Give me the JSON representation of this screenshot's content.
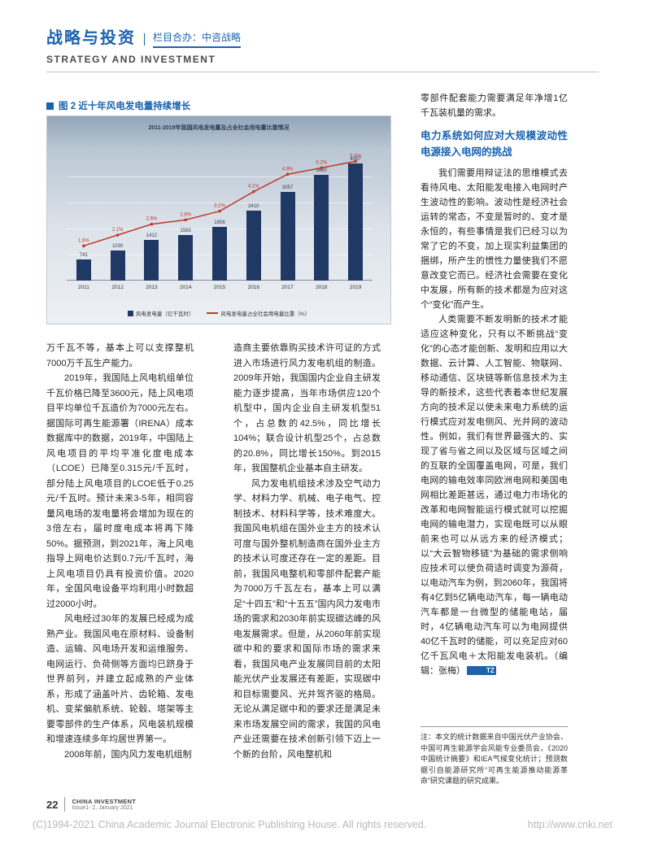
{
  "accent_color": "#1b63ae",
  "header": {
    "title_cn": "战略与投资",
    "subtitle_cn": "栏目合办：中咨战略",
    "title_en": "STRATEGY AND INVESTMENT"
  },
  "figure": {
    "caption": "图 2  近十年风电发电量持续增长"
  },
  "chart_data": {
    "type": "bar",
    "title": "2011-2019年我国风电发电量及占全社会用电量比重情况",
    "categories": [
      "2011",
      "2012",
      "2013",
      "2014",
      "2015",
      "2016",
      "2017",
      "2018",
      "2019"
    ],
    "series": [
      {
        "name": "风电发电量（亿千瓦时）",
        "type": "bar",
        "values": [
          741,
          1030,
          1412,
          1563,
          1856,
          2410,
          3057,
          3660,
          4057
        ]
      },
      {
        "name": "风电发电量占全社会用电量比重（%）",
        "type": "line",
        "values": [
          1.6,
          2.1,
          2.6,
          2.8,
          3.2,
          4.1,
          4.9,
          5.2,
          5.5
        ]
      }
    ],
    "ylim": [
      0,
      4500
    ],
    "y2max": 6,
    "grid": true,
    "legend_position": "bottom",
    "bar_color": "#1f3864",
    "line_color": "#c0392b"
  },
  "columns": {
    "col1": {
      "paras": [
        "万千瓦不等，基本上可以支撑整机7000万千瓦生产能力。",
        "2019年，我国陆上风电机组单位千瓦价格已降至3600元，陆上风电项目平均单位千瓦造价为7000元左右。据国际可再生能源署（IRENA）成本数据库中的数据，2019年，中国陆上风电项目的平均平准化度电成本（LCOE）已降至0.315元/千瓦时，部分陆上风电项目的LCOE低于0.25元/千瓦时。预计未来3-5年，相同容量风电场的发电量将会增加为现在的3倍左右，届时度电成本将再下降50%。据预测，到2021年，海上风电指导上网电价达到0.7元/千瓦时，海上风电项目仍具有投资价值。2020年，全国风电设备平均利用小时数超过2000小时。",
        "风电经过30年的发展已经成为成熟产业。我国风电在原材料、设备制造、运输、风电场开发和运维服务、电网运行、负荷侧等方面均已跻身于世界前列，并建立起成熟的产业体系，形成了涵盖叶片、齿轮箱、发电机、变桨偏航系统、轮毂、塔架等主要零部件的生产体系，风电装机规模和增速连续多年均居世界第一。",
        "2008年前，国内风力发电机组制"
      ]
    },
    "col2": {
      "paras": [
        "造商主要依靠购买技术许可证的方式进入市场进行风力发电机组的制造。2009年开始，我国国内企业自主研发能力逐步提高，当年市场供应120个机型中，国内企业自主研发机型51个，占总数的42.5%，同比增长104%；联合设计机型25个，占总数的20.8%，同比增长150%。到2015年，我国整机企业基本自主研发。",
        "风力发电机组技术涉及空气动力学、材料力学、机械、电子电气、控制技术、材料科学等，技术难度大。我国风电机组在国外业主方的技术认可度与国外整机制造商在国外业主方的技术认可度还存在一定的差距。目前，我国风电整机和零部件配套产能为7000万千瓦左右，基本上可以满足“十四五”和“十五五”国内风力发电市场的需求和2030年前实现碳达峰的风电发展需求。但是，从2060年前实现碳中和的要求和国际市场的需求来看，我国风电产业发展同目前的太阳能光伏产业发展还有差距，实现碳中和目标需要风、光并驾齐驱的格局。无论从满足碳中和的要求还是满足未来市场发展空间的需求，我国的风电产业还需要在技术创新引领下迈上一个新的台阶，风电整机和"
      ]
    },
    "col3": {
      "lead": "零部件配套能力需要满足年净增1亿千瓦装机量的需求。",
      "heading": "电力系统如何应对大规模波动性电源接入电网的挑战",
      "paras": [
        "我们需要用辩证法的思维模式去看待风电、太阳能发电接入电网时产生波动性的影响。波动性是经济社会运转的常态，不变是暂时的、变才是永恒的，有些事情是我们已经习以为常了它的不变，加上现实利益集团的捆绑，所产生的惯性力量使我们不愿意改变它而已。经济社会需要在变化中发展，所有新的技术都是为应对这个“变化”而产生。",
        "人类需要不断发明新的技术才能适应这种变化，只有以不断挑战“变化”的心态才能创新、发明和应用以大数据、云计算、人工智能、物联网、移动通信、区块链等新信息技术为主导的新技术，这些代表着本世纪发展方向的技术足以使未来电力系统的运行模式应对发电侧风、光并网的波动性。例如，我们有世界最强大的、实现了省与省之间以及区域与区域之间的互联的全国覆盖电网，可是，我们电网的输电效率同欧洲电网和美国电网相比差距甚远，通过电力市场化的改革和电网智能运行模式就可以挖掘电网的输电潜力，实现电既可以从眼前来也可以从远方来的经济模式；以“大云智物移链”为基础的需求侧响应技术可以使负荷适时调变为源荷，以电动汽车为例，到2060年，我国将有4亿到5亿辆电动汽车，每一辆电动汽车都是一台微型的储能电站，届时，4亿辆电动汽车可以为电网提供40亿千瓦时的储能，可以充足应对60亿千瓦风电＋太阳能发电装机。（编辑：张梅）"
      ],
      "end_mark": "TZ"
    }
  },
  "note": "注：本文的统计数据来自中国光伏产业协会、中国可再生能源学会风能专业委员会，《2020中国统计摘要》和IEA气候变化统计；预测数据引自能源研究所“可再生能源推动能源革命”研究课题的研究成果。",
  "footer": {
    "page_no": "22",
    "journal": "CHINA INVESTMENT",
    "issue": "Issue1- 2, January 2021",
    "watermark_left": "(C)1994-2021 China Academic Journal Electronic Publishing House. All rights reserved.",
    "watermark_right": "http://www.cnki.net"
  }
}
